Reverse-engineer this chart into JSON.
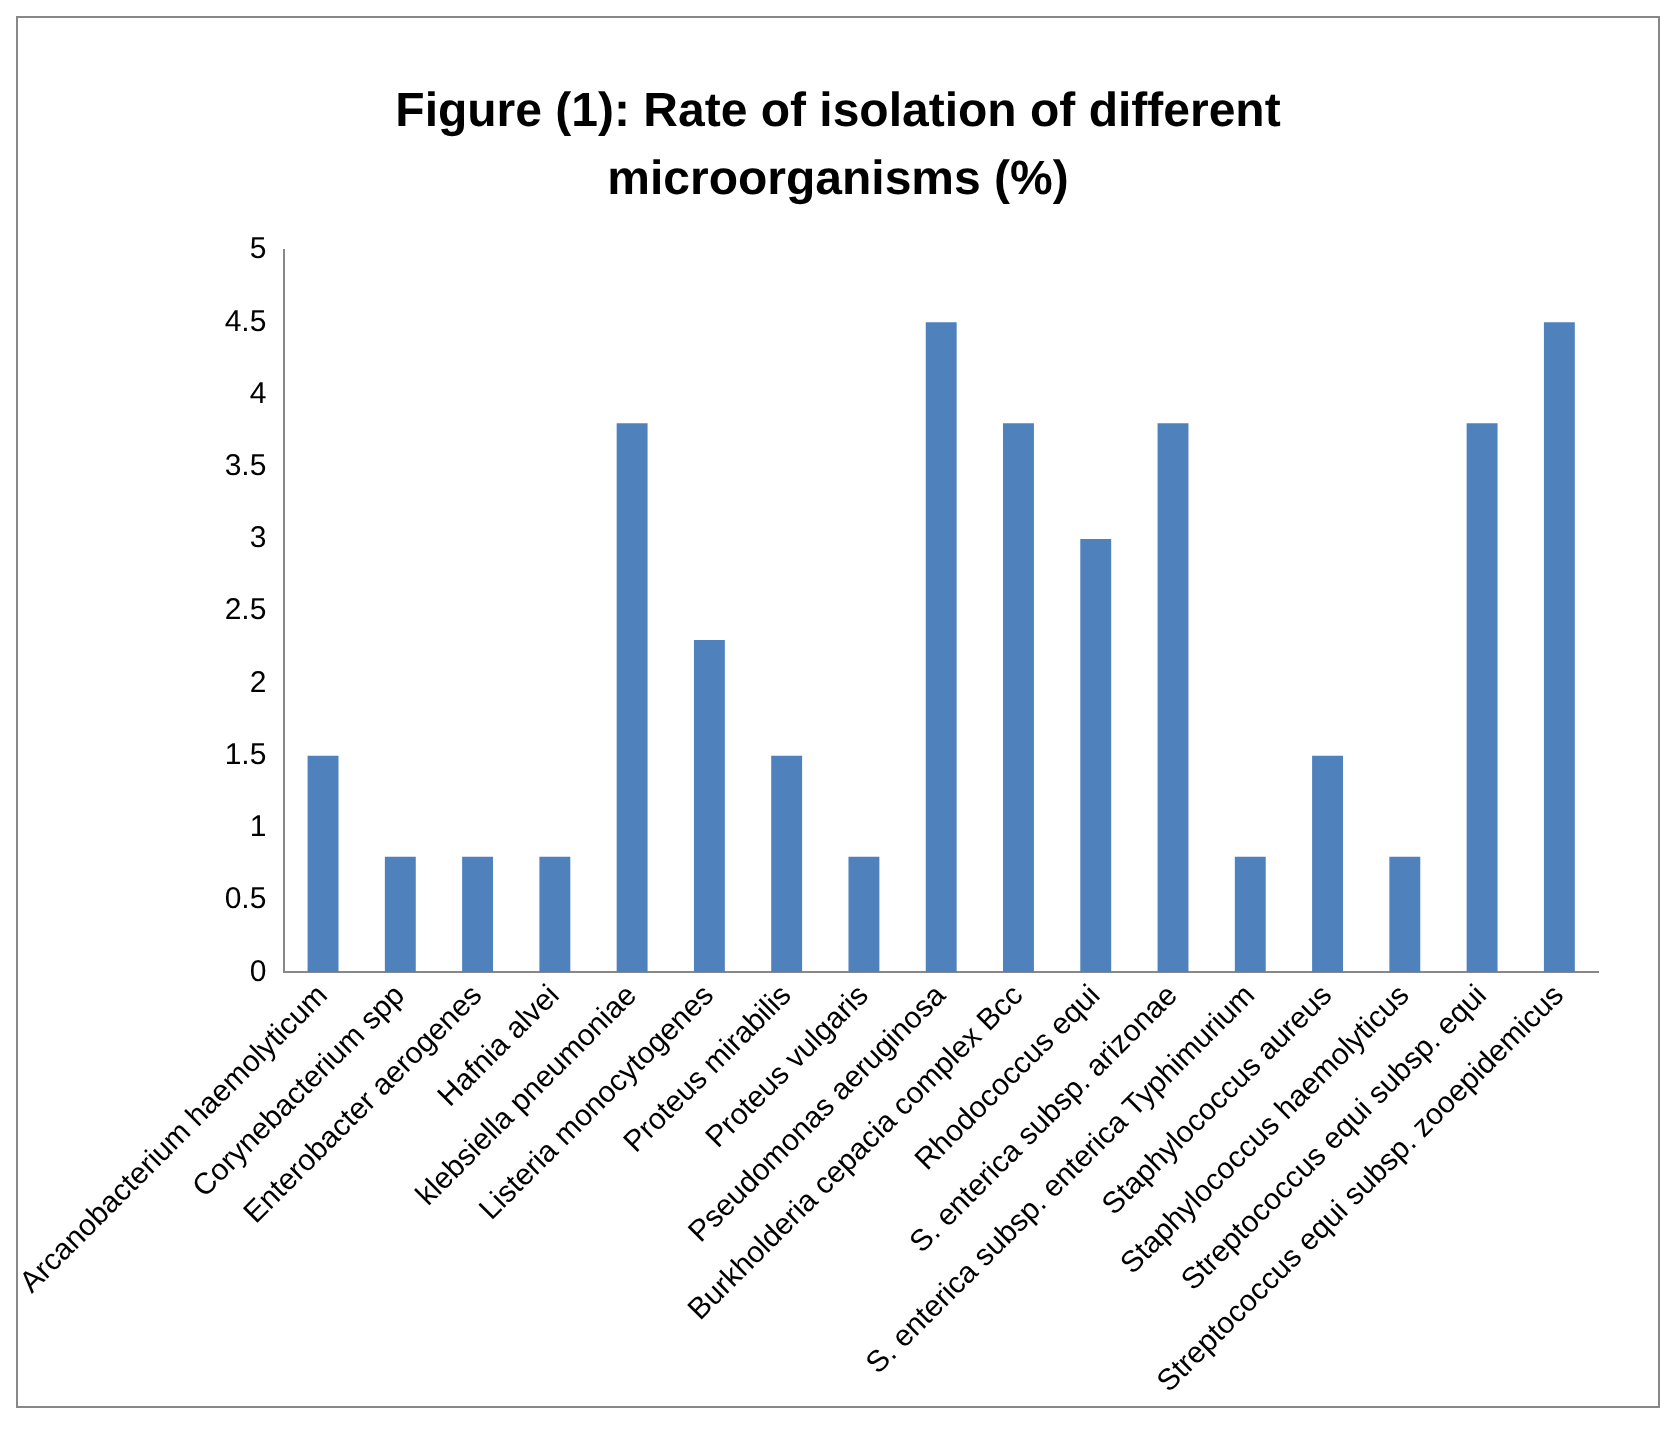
{
  "chart_data": {
    "type": "bar",
    "title": "Figure (1): Rate of isolation of different microorganisms (%)",
    "categories": [
      "Arcanobacterium haemolyticum",
      "Corynebacterium spp",
      "Enterobacter aerogenes",
      "Hafnia alvei",
      "klebsiella pneumoniae",
      "Listeria monocytogenes",
      "Proteus mirabilis",
      "Proteus vulgaris",
      "Pseudomonas aeruginosa",
      "Burkholderia cepacia complex Bcc",
      "Rhodococcus equi",
      "S. enterica subsp. arizonae",
      "S. enterica subsp. enterica Typhimurium",
      "Staphylococcus aureus",
      "Staphylococcus haemolyticus",
      "Streptococcus equi subsp. equi",
      "Streptococcus equi subsp. zooepidemicus"
    ],
    "values": [
      1.5,
      0.8,
      0.8,
      0.8,
      3.8,
      2.3,
      1.5,
      0.8,
      4.5,
      3.8,
      3.0,
      3.8,
      0.8,
      1.5,
      0.8,
      3.8,
      4.5
    ],
    "color": "#4f81bd",
    "ylim": [
      0,
      5
    ],
    "yticks": [
      0,
      0.5,
      1,
      1.5,
      2,
      2.5,
      3,
      3.5,
      4,
      4.5,
      5
    ],
    "grid": false,
    "legend": false
  }
}
